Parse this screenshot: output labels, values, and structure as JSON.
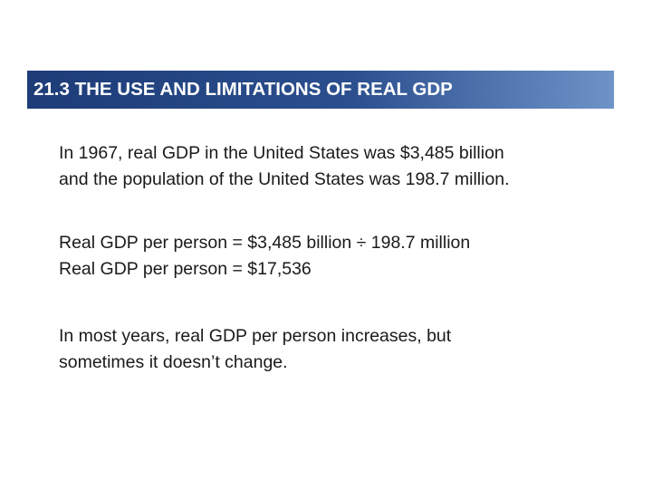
{
  "header": {
    "title": "21.3 THE USE AND LIMITATIONS OF REAL GDP"
  },
  "body": [
    [
      "In 1967, real GDP in the United States was $3,485 billion",
      "and the population of the United States was 198.7 million."
    ],
    [
      "Real GDP per person = $3,485 billion ÷ 198.7 million",
      "Real GDP per person = $17,536"
    ],
    [
      "In most years, real GDP per person increases, but",
      "sometimes it doesn’t change."
    ]
  ]
}
